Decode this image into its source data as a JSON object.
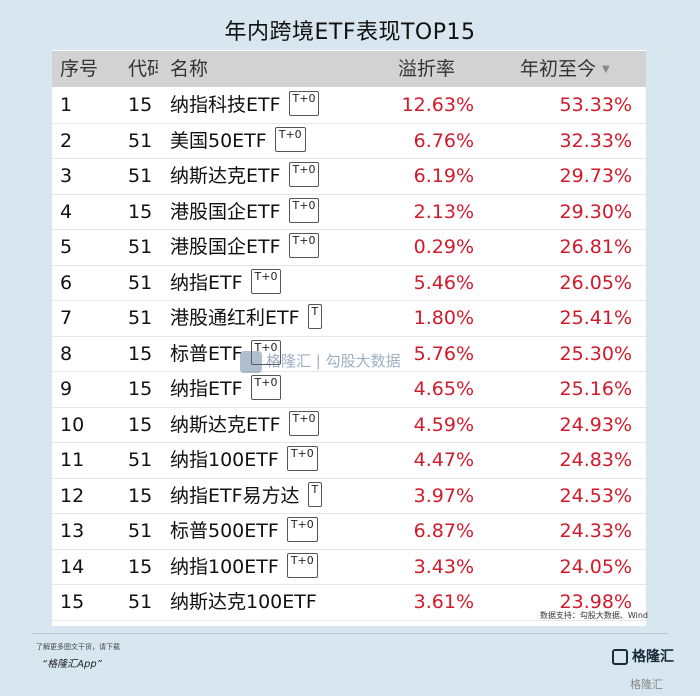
{
  "title": "年内跨境ETF表现TOP15",
  "table": {
    "headers": {
      "idx": "序号",
      "code": "代码",
      "name": "名称",
      "premium": "溢折率",
      "ytd": "年初至今"
    },
    "sort_indicator": "▼",
    "rows": [
      {
        "idx": "1",
        "code": "15",
        "name": "纳指科技ETF",
        "badge": "T+0",
        "premium": "12.63%",
        "ytd": "53.33%"
      },
      {
        "idx": "2",
        "code": "51",
        "name": "美国50ETF",
        "badge": "T+0",
        "premium": "6.76%",
        "ytd": "32.33%"
      },
      {
        "idx": "3",
        "code": "51",
        "name": "纳斯达克ETF",
        "badge": "T+0",
        "premium": "6.19%",
        "ytd": "29.73%"
      },
      {
        "idx": "4",
        "code": "15",
        "name": "港股国企ETF",
        "badge": "T+0",
        "premium": "2.13%",
        "ytd": "29.30%"
      },
      {
        "idx": "5",
        "code": "51",
        "name": "港股国企ETF",
        "badge": "T+0",
        "premium": "0.29%",
        "ytd": "26.81%"
      },
      {
        "idx": "6",
        "code": "51",
        "name": "纳指ETF",
        "badge": "T+0",
        "premium": "5.46%",
        "ytd": "26.05%"
      },
      {
        "idx": "7",
        "code": "51",
        "name": "港股通红利ETF",
        "badge": "T",
        "premium": "1.80%",
        "ytd": "25.41%"
      },
      {
        "idx": "8",
        "code": "15",
        "name": "标普ETF",
        "badge": "T+0",
        "premium": "5.76%",
        "ytd": "25.30%"
      },
      {
        "idx": "9",
        "code": "15",
        "name": "纳指ETF",
        "badge": "T+0",
        "premium": "4.65%",
        "ytd": "25.16%"
      },
      {
        "idx": "10",
        "code": "15",
        "name": "纳斯达克ETF",
        "badge": "T+0",
        "premium": "4.59%",
        "ytd": "24.93%"
      },
      {
        "idx": "11",
        "code": "51",
        "name": "纳指100ETF",
        "badge": "T+0",
        "premium": "4.47%",
        "ytd": "24.83%"
      },
      {
        "idx": "12",
        "code": "15",
        "name": "纳指ETF易方达",
        "badge": "T",
        "premium": "3.97%",
        "ytd": "24.53%"
      },
      {
        "idx": "13",
        "code": "51",
        "name": "标普500ETF",
        "badge": "T+0",
        "premium": "6.87%",
        "ytd": "24.33%"
      },
      {
        "idx": "14",
        "code": "15",
        "name": "纳指100ETF",
        "badge": "T+0",
        "premium": "3.43%",
        "ytd": "24.05%"
      },
      {
        "idx": "15",
        "code": "51",
        "name": "纳斯达克100ETF",
        "badge": "",
        "premium": "3.61%",
        "ytd": "23.98%"
      }
    ]
  },
  "source": "数据支持：勾股大数据、Wind",
  "watermark": "格隆汇 | 勾股大数据",
  "footer": {
    "line1": "了解更多图文干货，请下载",
    "line2": "“格隆汇App”",
    "brand": "格隆汇",
    "corner": "格隆汇"
  },
  "colors": {
    "background": "#d7e6ef",
    "header_bg": "#d2d2d2",
    "value_red": "#d11a2a"
  }
}
